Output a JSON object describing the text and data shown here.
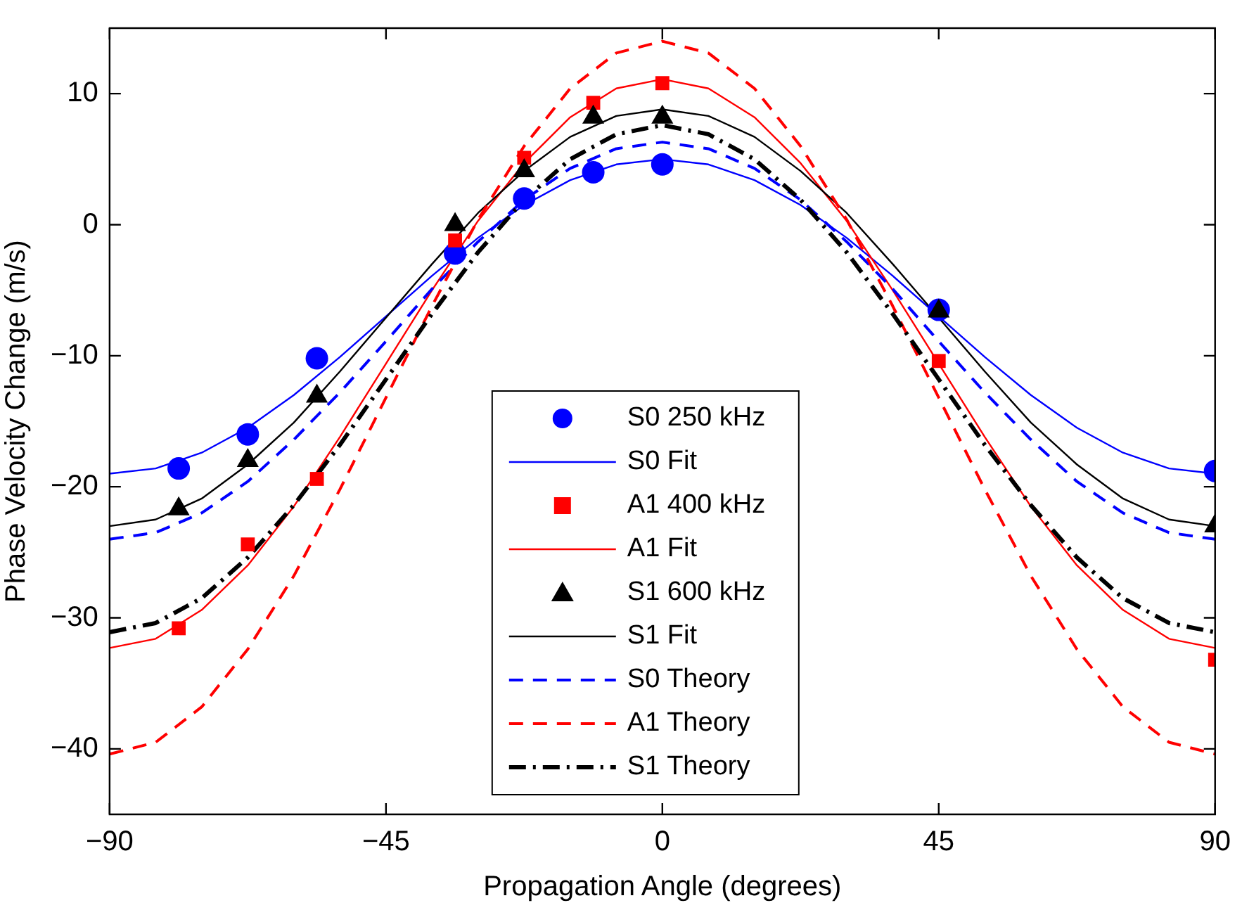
{
  "chart_data": {
    "type": "line",
    "xlabel": "Propagation Angle (degrees)",
    "ylabel": "Phase Velocity Change (m/s)",
    "xlim": [
      -90,
      90
    ],
    "xticks": [
      -90,
      -45,
      0,
      45,
      90
    ],
    "ylim": [
      -45,
      15
    ],
    "yticks": [
      -40,
      -30,
      -20,
      -10,
      0,
      10
    ],
    "grid": false,
    "legend": "bottom",
    "series": [
      {
        "name": "S0 250 kHz",
        "type": "scatter",
        "marker": "circle",
        "color": "#0000ff",
        "x": [
          -78.75,
          -67.5,
          -56.25,
          -33.75,
          -22.5,
          -11.25,
          0,
          45,
          90
        ],
        "values": [
          -18.6,
          -16.0,
          -10.2,
          -2.2,
          2.0,
          4.0,
          4.6,
          -6.5,
          -18.8
        ]
      },
      {
        "name": "S0 Fit",
        "type": "line",
        "marker": "none",
        "line_style": "solid",
        "color": "#0000ff",
        "x": [
          -90,
          -82.5,
          -75,
          -67.5,
          -60,
          -52.5,
          -45,
          -37.5,
          -30,
          -22.5,
          -15,
          -7.5,
          0,
          7.5,
          15,
          22.5,
          30,
          37.5,
          45,
          52.5,
          60,
          67.5,
          75,
          82.5,
          90
        ],
        "values": [
          -19.0,
          -18.6,
          -17.4,
          -15.5,
          -13.0,
          -10.1,
          -7.0,
          -3.9,
          -1.0,
          1.5,
          3.4,
          4.6,
          5.0,
          4.6,
          3.4,
          1.5,
          -1.0,
          -3.9,
          -7.0,
          -10.1,
          -13.0,
          -15.5,
          -17.4,
          -18.6,
          -19.0
        ]
      },
      {
        "name": "A1 400 kHz",
        "type": "scatter",
        "marker": "square",
        "color": "#ff0000",
        "x": [
          -78.75,
          -67.5,
          -56.25,
          -33.75,
          -22.5,
          -11.25,
          0,
          45,
          90
        ],
        "values": [
          -30.8,
          -24.4,
          -19.4,
          -1.2,
          5.1,
          9.3,
          10.8,
          -10.4,
          -33.2
        ]
      },
      {
        "name": "A1 Fit",
        "type": "line",
        "marker": "none",
        "line_style": "solid",
        "color": "#ff0000",
        "x": [
          -90,
          -82.5,
          -75,
          -67.5,
          -60,
          -52.5,
          -45,
          -37.5,
          -30,
          -22.5,
          -15,
          -7.5,
          0,
          7.5,
          15,
          22.5,
          30,
          37.5,
          45,
          52.5,
          60,
          67.5,
          75,
          82.5,
          90
        ],
        "values": [
          -32.3,
          -31.6,
          -29.4,
          -26.0,
          -21.5,
          -16.2,
          -10.6,
          -5.0,
          0.3,
          4.7,
          8.2,
          10.4,
          11.1,
          10.4,
          8.2,
          4.7,
          0.3,
          -5.0,
          -10.6,
          -16.2,
          -21.5,
          -26.0,
          -29.4,
          -31.6,
          -32.3
        ]
      },
      {
        "name": "S1 600 kHz",
        "type": "scatter",
        "marker": "triangle",
        "color": "#000000",
        "x": [
          -78.75,
          -67.5,
          -56.25,
          -33.75,
          -22.5,
          -11.25,
          0,
          45,
          90
        ],
        "values": [
          -21.7,
          -18.0,
          -13.1,
          0.0,
          4.1,
          8.2,
          8.2,
          -6.6,
          -23.0
        ]
      },
      {
        "name": "S1 Fit",
        "type": "line",
        "marker": "none",
        "line_style": "solid",
        "color": "#000000",
        "x": [
          -90,
          -82.5,
          -75,
          -67.5,
          -60,
          -52.5,
          -45,
          -37.5,
          -30,
          -22.5,
          -15,
          -7.5,
          0,
          7.5,
          15,
          22.5,
          30,
          37.5,
          45,
          52.5,
          60,
          67.5,
          75,
          82.5,
          90
        ],
        "values": [
          -23.0,
          -22.5,
          -20.9,
          -18.3,
          -15.1,
          -11.2,
          -7.1,
          -3.0,
          0.9,
          4.1,
          6.7,
          8.3,
          8.8,
          8.3,
          6.7,
          4.1,
          0.9,
          -3.0,
          -7.1,
          -11.2,
          -15.1,
          -18.3,
          -20.9,
          -22.5,
          -23.0
        ]
      },
      {
        "name": "S0 Theory",
        "type": "line",
        "marker": "none",
        "line_style": "dashed",
        "color": "#0000ff",
        "x": [
          -90,
          -82.5,
          -75,
          -67.5,
          -60,
          -52.5,
          -45,
          -37.5,
          -30,
          -22.5,
          -15,
          -7.5,
          0,
          7.5,
          15,
          22.5,
          30,
          37.5,
          45,
          52.5,
          60,
          67.5,
          75,
          82.5,
          90
        ],
        "values": [
          -24.0,
          -23.5,
          -22.0,
          -19.6,
          -16.4,
          -12.8,
          -8.9,
          -4.9,
          -1.3,
          1.9,
          4.3,
          5.8,
          6.3,
          5.8,
          4.3,
          1.9,
          -1.3,
          -4.9,
          -8.9,
          -12.8,
          -16.4,
          -19.6,
          -22.0,
          -23.5,
          -24.0
        ]
      },
      {
        "name": "A1 Theory",
        "type": "line",
        "marker": "none",
        "line_style": "dashed",
        "color": "#ff0000",
        "x": [
          -90,
          -82.5,
          -75,
          -67.5,
          -60,
          -52.5,
          -45,
          -37.5,
          -30,
          -22.5,
          -15,
          -7.5,
          0,
          7.5,
          15,
          22.5,
          30,
          37.5,
          45,
          52.5,
          60,
          67.5,
          75,
          82.5,
          90
        ],
        "values": [
          -40.4,
          -39.5,
          -36.8,
          -32.4,
          -26.8,
          -20.2,
          -13.2,
          -6.2,
          0.4,
          6.0,
          10.4,
          13.1,
          14.0,
          13.1,
          10.4,
          6.0,
          0.4,
          -6.2,
          -13.2,
          -20.2,
          -26.8,
          -32.4,
          -36.8,
          -39.5,
          -40.4
        ]
      },
      {
        "name": "S1 Theory",
        "type": "line",
        "marker": "none",
        "line_style": "dashdot",
        "color": "#000000",
        "x": [
          -90,
          -82.5,
          -75,
          -67.5,
          -60,
          -52.5,
          -45,
          -37.5,
          -30,
          -22.5,
          -15,
          -7.5,
          0,
          7.5,
          15,
          22.5,
          30,
          37.5,
          45,
          52.5,
          60,
          67.5,
          75,
          82.5,
          90
        ],
        "values": [
          -31.1,
          -30.4,
          -28.5,
          -25.4,
          -21.4,
          -16.8,
          -11.8,
          -6.8,
          -2.1,
          1.9,
          5.0,
          6.9,
          7.6,
          6.9,
          5.0,
          1.9,
          -2.1,
          -6.8,
          -11.8,
          -16.8,
          -21.4,
          -25.4,
          -28.5,
          -30.4,
          -31.1
        ]
      }
    ]
  }
}
